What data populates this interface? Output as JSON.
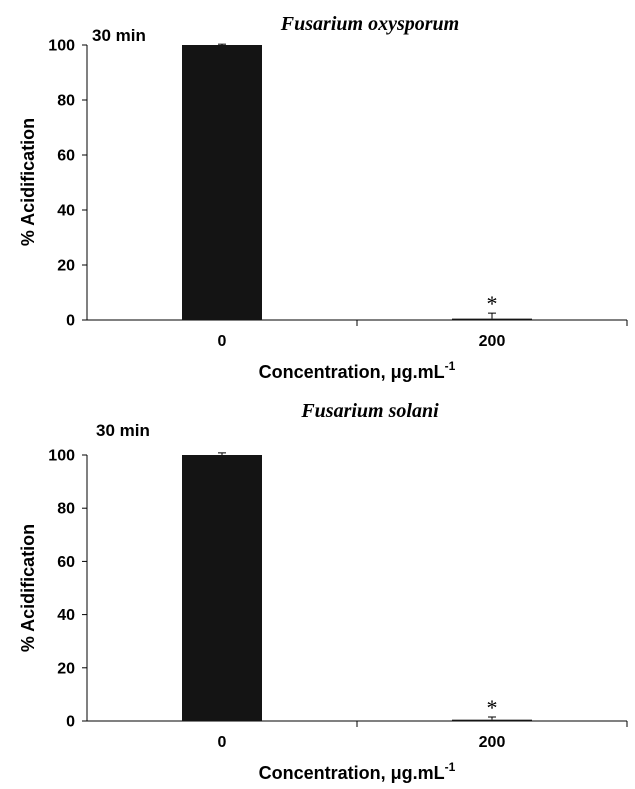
{
  "chart_data": [
    {
      "type": "bar",
      "title": "Fusarium oxysporum",
      "annotation": "30 min",
      "categories": [
        "0",
        "200"
      ],
      "values": [
        100,
        0.5
      ],
      "errors": [
        0.3,
        2.0
      ],
      "significance": [
        "",
        "*"
      ],
      "ylabel": "% Acidification",
      "xlabel_prefix": "Concentration, ",
      "xlabel_unit": "μg.mL",
      "xlabel_sup": "-1",
      "ylim": [
        0,
        100
      ],
      "yticks": [
        "0",
        "20",
        "40",
        "60",
        "80",
        "100"
      ],
      "bar_color": "#141414",
      "grid": false
    },
    {
      "type": "bar",
      "title": "Fusarium solani",
      "annotation": "30 min",
      "categories": [
        "0",
        "200"
      ],
      "values": [
        100,
        0.5
      ],
      "errors": [
        0.8,
        1.0
      ],
      "significance": [
        "",
        "*"
      ],
      "ylabel": "% Acidification",
      "xlabel_prefix": "Concentration, ",
      "xlabel_unit": "μg.mL",
      "xlabel_sup": "-1",
      "ylim": [
        0,
        100
      ],
      "yticks": [
        "0",
        "20",
        "40",
        "60",
        "80",
        "100"
      ],
      "bar_color": "#141414",
      "grid": false
    }
  ]
}
